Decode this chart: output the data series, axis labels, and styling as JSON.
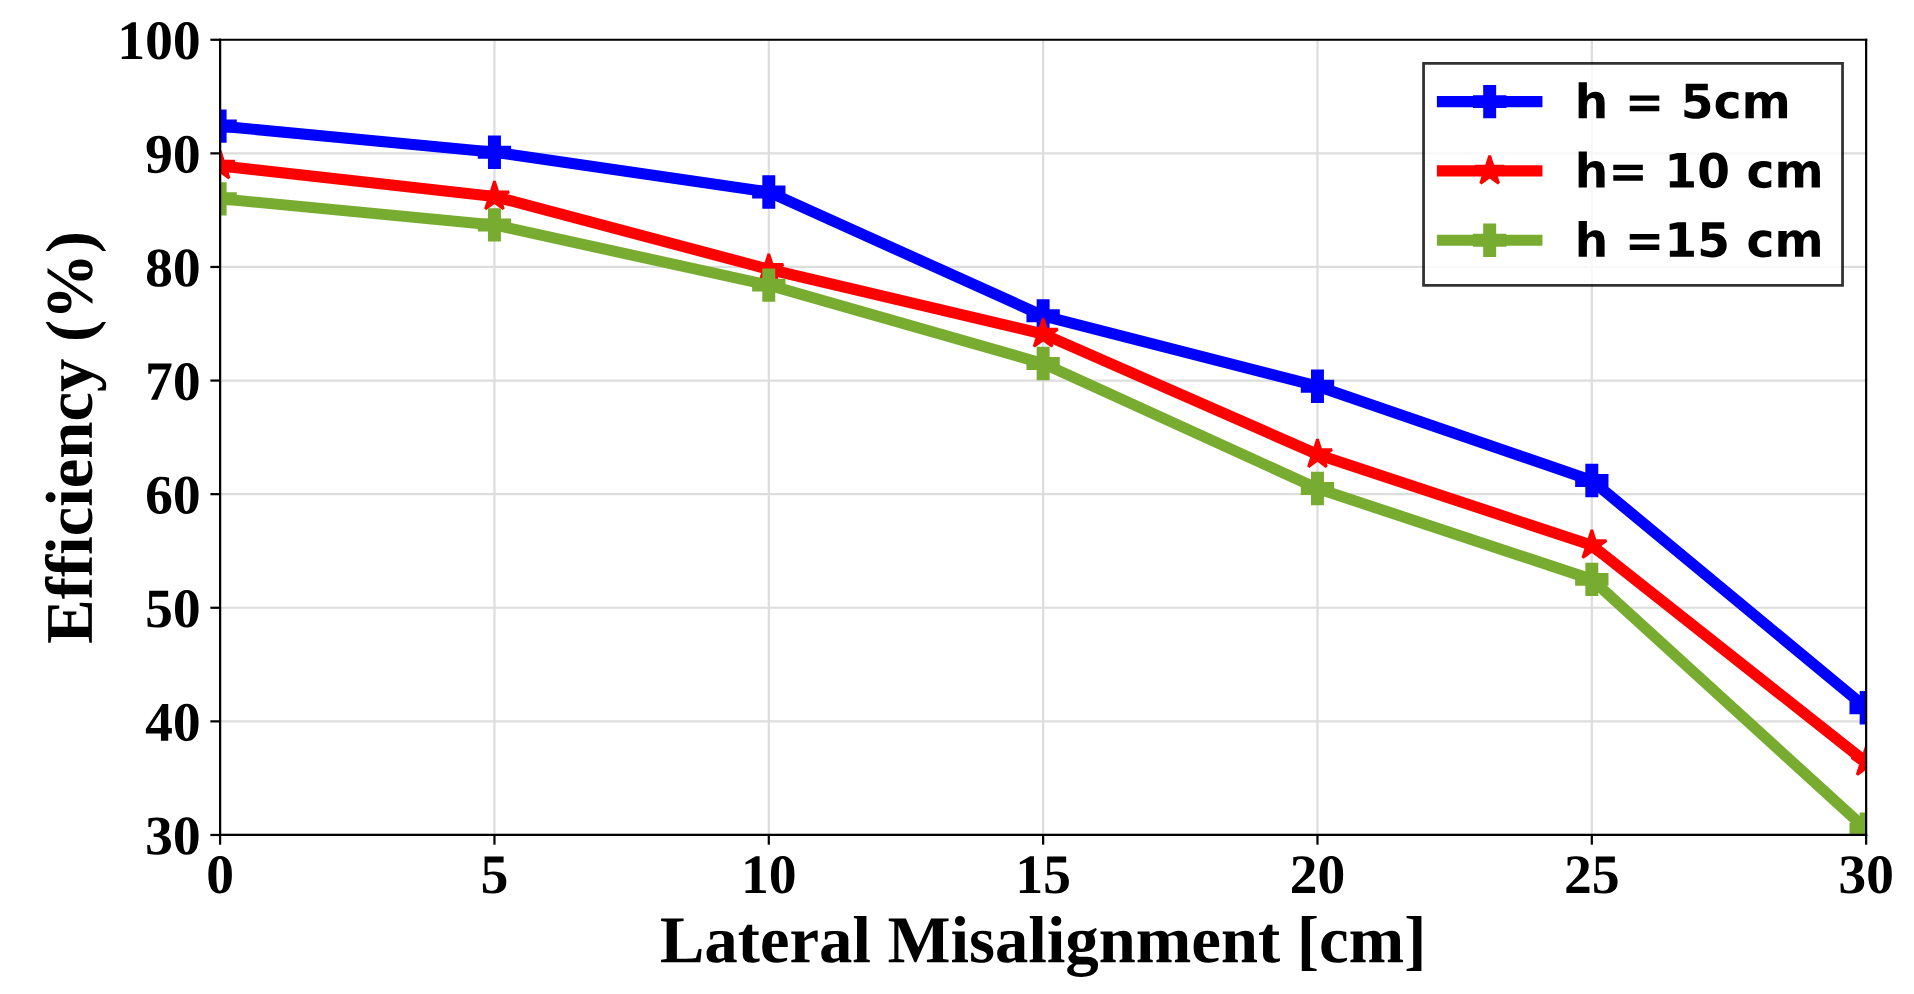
{
  "chart_data": {
    "type": "line",
    "xlabel": "Lateral Misalignment [cm]",
    "ylabel": "Efficiency (%)",
    "x": [
      0,
      5,
      10,
      15,
      20,
      25,
      30
    ],
    "series": [
      {
        "name": "h = 5cm",
        "color": "#0000ff",
        "marker": "cross",
        "values": [
          92.4,
          90.1,
          86.6,
          75.7,
          69.5,
          61.2,
          41.2
        ]
      },
      {
        "name": "h= 10 cm",
        "color": "#ff0000",
        "marker": "star",
        "values": [
          88.9,
          86.2,
          79.8,
          74.1,
          63.5,
          55.5,
          36.4
        ]
      },
      {
        "name": "h =15 cm",
        "color": "#77ac30",
        "marker": "cross",
        "values": [
          86.0,
          83.7,
          78.4,
          71.5,
          60.5,
          52.5,
          30.5
        ]
      }
    ],
    "xlim": [
      0,
      30
    ],
    "ylim": [
      30,
      100
    ],
    "xticks": [
      0,
      5,
      10,
      15,
      20,
      25,
      30
    ],
    "yticks": [
      30,
      40,
      50,
      60,
      70,
      80,
      90,
      100
    ],
    "grid": true,
    "legend": "top right",
    "line_style": "solid"
  }
}
